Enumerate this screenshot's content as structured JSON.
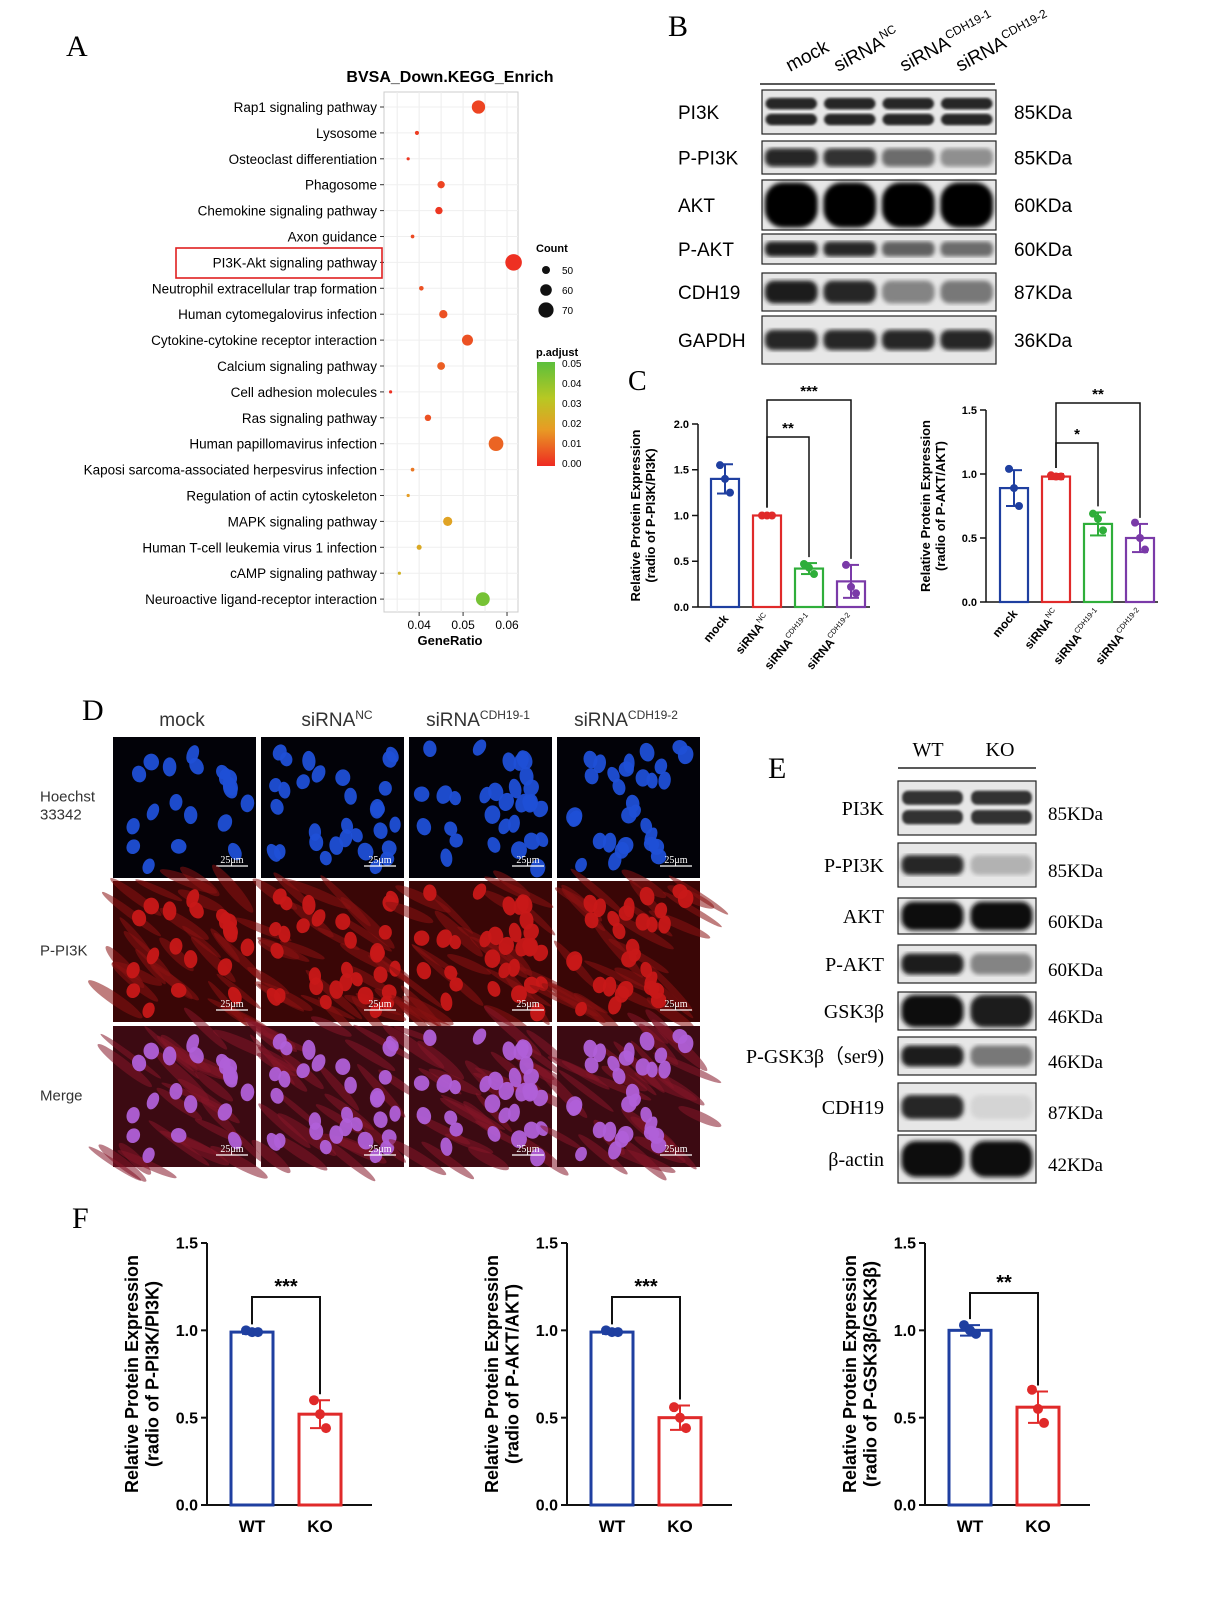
{
  "panels": {
    "a": "A",
    "b": "B",
    "c": "C",
    "d": "D",
    "e": "E",
    "f": "F"
  },
  "kegg": {
    "title": "BVSA_Down.KEGG_Enrich",
    "xlabel": "GeneRatio",
    "xticks": [
      "0.04",
      "0.05",
      "0.06"
    ],
    "highlight": "PI3K-Akt signaling pathway",
    "count_legend": {
      "title": "Count",
      "values": [
        50,
        60,
        70
      ]
    },
    "padj_legend": {
      "title": "p.adjust",
      "ticks": [
        "0.05",
        "0.04",
        "0.03",
        "0.02",
        "0.01",
        "0.00"
      ]
    }
  },
  "chart_data": [
    {
      "type": "scatter",
      "title": "BVSA_Down.KEGG_Enrich",
      "xlabel": "GeneRatio",
      "ylabel": "",
      "xlim": [
        0.032,
        0.0625
      ],
      "points": [
        {
          "term": "Rap1 signaling pathway",
          "x": 0.0535,
          "count": 65,
          "padj": 0.004
        },
        {
          "term": "Lysosome",
          "x": 0.0395,
          "count": 45,
          "padj": 0.003
        },
        {
          "term": "Osteoclast differentiation",
          "x": 0.0375,
          "count": 42,
          "padj": 0.002
        },
        {
          "term": "Phagosome",
          "x": 0.045,
          "count": 52,
          "padj": 0.004
        },
        {
          "term": "Chemokine signaling pathway",
          "x": 0.0445,
          "count": 52,
          "padj": 0.002
        },
        {
          "term": "Axon guidance",
          "x": 0.0385,
          "count": 44,
          "padj": 0.005
        },
        {
          "term": "PI3K-Akt signaling pathway",
          "x": 0.0615,
          "count": 72,
          "padj": 0.001
        },
        {
          "term": "Neutrophil extracellular trap formation",
          "x": 0.0405,
          "count": 46,
          "padj": 0.006
        },
        {
          "term": "Human cytomegalovirus infection",
          "x": 0.0455,
          "count": 54,
          "padj": 0.006
        },
        {
          "term": "Cytokine-cytokine receptor interaction",
          "x": 0.051,
          "count": 60,
          "padj": 0.006
        },
        {
          "term": "Calcium signaling pathway",
          "x": 0.045,
          "count": 53,
          "padj": 0.008
        },
        {
          "term": "Cell adhesion molecules",
          "x": 0.0335,
          "count": 38,
          "padj": 0.001
        },
        {
          "term": "Ras signaling pathway",
          "x": 0.042,
          "count": 50,
          "padj": 0.006
        },
        {
          "term": "Human papillomavirus infection",
          "x": 0.0575,
          "count": 68,
          "padj": 0.009
        },
        {
          "term": "Kaposi sarcoma-associated herpesvirus infection",
          "x": 0.0385,
          "count": 44,
          "padj": 0.012
        },
        {
          "term": "Regulation of actin cytoskeleton",
          "x": 0.0375,
          "count": 43,
          "padj": 0.018
        },
        {
          "term": "MAPK signaling pathway",
          "x": 0.0465,
          "count": 56,
          "padj": 0.02
        },
        {
          "term": "Human T-cell leukemia virus 1 infection",
          "x": 0.04,
          "count": 47,
          "padj": 0.022
        },
        {
          "term": "cAMP signaling pathway",
          "x": 0.0355,
          "count": 40,
          "padj": 0.025
        },
        {
          "term": "Neuroactive ligand-receptor interaction",
          "x": 0.0545,
          "count": 66,
          "padj": 0.045
        }
      ]
    },
    {
      "type": "bar",
      "ylabel": "Relative Protein Expression\n(radio of P-PI3K/PI3K)",
      "ylim": [
        0,
        2.0
      ],
      "yticks": [
        "0.0",
        "0.5",
        "1.0",
        "1.5",
        "2.0"
      ],
      "categories": [
        "mock",
        "siRNA NC",
        "siRNA CDH19-1",
        "siRNA CDH19-2"
      ],
      "values": [
        1.4,
        1.0,
        0.42,
        0.28
      ],
      "errors": [
        0.16,
        0.02,
        0.06,
        0.18
      ],
      "points": [
        [
          1.55,
          1.4,
          1.25
        ],
        [
          1.0,
          1.0,
          1.0
        ],
        [
          0.47,
          0.43,
          0.36
        ],
        [
          0.46,
          0.22,
          0.15
        ]
      ],
      "significance": [
        {
          "from": 1,
          "to": 2,
          "label": "**"
        },
        {
          "from": 1,
          "to": 3,
          "label": "***"
        }
      ]
    },
    {
      "type": "bar",
      "ylabel": "Relative Protein Expression\n(radio of P-AKT/AKT)",
      "ylim": [
        0,
        1.5
      ],
      "yticks": [
        "0.0",
        "0.5",
        "1.0",
        "1.5"
      ],
      "categories": [
        "mock",
        "siRNA NC",
        "siRNA CDH19-1",
        "siRNA CDH19-2"
      ],
      "values": [
        0.89,
        0.98,
        0.61,
        0.5
      ],
      "errors": [
        0.14,
        0.02,
        0.09,
        0.11
      ],
      "points": [
        [
          1.04,
          0.89,
          0.75
        ],
        [
          0.99,
          0.98,
          0.98
        ],
        [
          0.69,
          0.65,
          0.56
        ],
        [
          0.62,
          0.5,
          0.41
        ]
      ],
      "significance": [
        {
          "from": 1,
          "to": 2,
          "label": "*"
        },
        {
          "from": 1,
          "to": 3,
          "label": "**"
        }
      ]
    },
    {
      "type": "bar",
      "ylabel": "Relative Protein Expression\n(radio of P-PI3K/PI3K)",
      "ylim": [
        0,
        1.5
      ],
      "yticks": [
        "0.0",
        "0.5",
        "1.0",
        "1.5"
      ],
      "categories": [
        "WT",
        "KO"
      ],
      "values": [
        0.99,
        0.52
      ],
      "errors": [
        0.01,
        0.08
      ],
      "points": [
        [
          1.0,
          0.99,
          0.99
        ],
        [
          0.6,
          0.52,
          0.44
        ]
      ],
      "significance": [
        {
          "from": 0,
          "to": 1,
          "label": "***"
        }
      ]
    },
    {
      "type": "bar",
      "ylabel": "Relative Protein Expression\n(radio of P-AKT/AKT)",
      "ylim": [
        0,
        1.5
      ],
      "yticks": [
        "0.0",
        "0.5",
        "1.0",
        "1.5"
      ],
      "categories": [
        "WT",
        "KO"
      ],
      "values": [
        0.99,
        0.5
      ],
      "errors": [
        0.01,
        0.07
      ],
      "points": [
        [
          1.0,
          0.99,
          0.99
        ],
        [
          0.56,
          0.5,
          0.44
        ]
      ],
      "significance": [
        {
          "from": 0,
          "to": 1,
          "label": "***"
        }
      ]
    },
    {
      "type": "bar",
      "ylabel": "Relative Protein Expression\n(radio of P-GSK3β/GSK3β)",
      "ylim": [
        0,
        1.5
      ],
      "yticks": [
        "0.0",
        "0.5",
        "1.0",
        "1.5"
      ],
      "categories": [
        "WT",
        "KO"
      ],
      "values": [
        1.0,
        0.56
      ],
      "errors": [
        0.03,
        0.09
      ],
      "points": [
        [
          1.03,
          1.0,
          0.98
        ],
        [
          0.66,
          0.55,
          0.47
        ]
      ],
      "significance": [
        {
          "from": 0,
          "to": 1,
          "label": "**"
        }
      ]
    }
  ],
  "blot_b": {
    "lanes": [
      "mock",
      "siRNA",
      "siRNA",
      "siRNA"
    ],
    "lane_sups": [
      "",
      "NC",
      "CDH19-1",
      "CDH19-2"
    ],
    "rows": [
      {
        "label": "PI3K",
        "kda": "85KDa",
        "intensity": [
          0.85,
          0.85,
          0.85,
          0.85
        ]
      },
      {
        "label": "P-PI3K",
        "kda": "85KDa",
        "intensity": [
          0.85,
          0.8,
          0.55,
          0.4
        ]
      },
      {
        "label": "AKT",
        "kda": "60KDa",
        "intensity": [
          1.0,
          1.0,
          1.0,
          1.0
        ]
      },
      {
        "label": "P-AKT",
        "kda": "60KDa",
        "intensity": [
          0.9,
          0.85,
          0.6,
          0.55
        ]
      },
      {
        "label": "CDH19",
        "kda": "87KDa",
        "intensity": [
          0.9,
          0.85,
          0.45,
          0.5
        ]
      },
      {
        "label": "GAPDH",
        "kda": "36KDa",
        "intensity": [
          0.85,
          0.85,
          0.85,
          0.85
        ]
      }
    ]
  },
  "micro_d": {
    "columns": [
      "mock",
      "siRNA",
      "siRNA",
      "siRNA"
    ],
    "col_sups": [
      "",
      "NC",
      "CDH19-1",
      "CDH19-2"
    ],
    "rows": [
      "Hoechst\n33342",
      "P-PI3K",
      "Merge"
    ],
    "scale_bar": "25μm",
    "colors": {
      "hoechst": "#1f4fd6",
      "ppi3k": "#c81818",
      "merge": "#b060d8"
    }
  },
  "blot_e": {
    "lanes": [
      "WT",
      "KO"
    ],
    "rows": [
      {
        "label": "PI3K",
        "kda": "85KDa",
        "intensity": [
          0.8,
          0.8
        ]
      },
      {
        "label": "P-PI3K",
        "kda": "85KDa",
        "intensity": [
          0.85,
          0.25
        ]
      },
      {
        "label": "AKT",
        "kda": "60KDa",
        "intensity": [
          0.95,
          0.95
        ]
      },
      {
        "label": "P-AKT",
        "kda": "60KDa",
        "intensity": [
          0.9,
          0.45
        ]
      },
      {
        "label": "GSK3β",
        "kda": "46KDa",
        "intensity": [
          0.95,
          0.9
        ]
      },
      {
        "label": "P-GSK3β（ser9)",
        "kda": "46KDa",
        "intensity": [
          0.9,
          0.5
        ]
      },
      {
        "label": "CDH19",
        "kda": "87KDa",
        "intensity": [
          0.85,
          0.1
        ]
      },
      {
        "label": "β-actin",
        "kda": "42KDa",
        "intensity": [
          0.95,
          0.95
        ]
      }
    ]
  }
}
